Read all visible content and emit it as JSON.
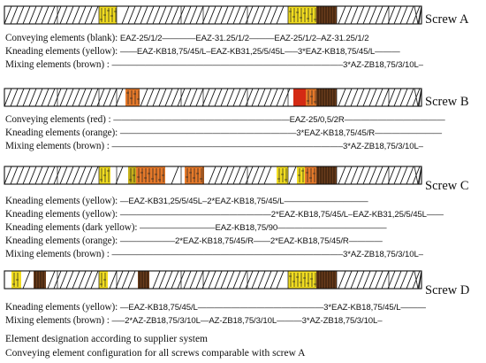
{
  "colors": {
    "yellow": "#f2dd20",
    "red": "#d42a14",
    "orange": "#e77a2a",
    "dark_yellow": "#c8b21a",
    "brown": "#6b3d1c",
    "outline": "#111111"
  },
  "screws": [
    {
      "name": "Screw A",
      "rows": [
        {
          "label": "Conveying elements (blank):",
          "code": "EAZ-25/1/2————EAZ-31.25/1/2———EAZ-25/1/2–AZ-31.25/1/2"
        },
        {
          "label": "Kneading elements (yellow):",
          "code": "——EAZ-KB18,75/45/L–EAZ-KB31,25/5/45L—–3*EAZ-KB18,75/45/L———"
        },
        {
          "label": "Mixing elements (brown)      :",
          "code": "———————————————————————————–3*AZ-ZB18,75/3/10L–"
        }
      ]
    },
    {
      "name": "Screw B",
      "rows": [
        {
          "label": "Conveying elements (red)   :",
          "code": "—————————————————————EAZ-25/0,5/2R————————————"
        },
        {
          "label": "Kneading elements (orange):",
          "code": "—————————————————————3*EAZ-KB18,75/45/R————————"
        },
        {
          "label": "Mixing elements (brown)      :",
          "code": "———————————————————————————–3*AZ-ZB18,75/3/10L–"
        }
      ]
    },
    {
      "name": "Screw C",
      "rows": [
        {
          "label": "Kneading elements (yellow):",
          "code": "—EAZ-KB31,25/5/45L–2*EAZ-KB18,75/45/L——————————"
        },
        {
          "label": "Kneading elements (yellow):",
          "code": "——————————————————2*EAZ-KB18,75/45/L–EAZ-KB31,25/5/45L——"
        },
        {
          "label": "Kneading elements (dark yellow):",
          "code": "—————————EAZ-KB18,75/90—————————————"
        },
        {
          "label": "Kneading elements (orange):",
          "code": "——————–2*EAZ-KB18,75/45/R——2*EAZ-KB18,75/45/R————"
        },
        {
          "label": "Mixing elements (brown)      :",
          "code": "———————————————————————————–3*AZ-ZB18,75/3/10L–"
        }
      ]
    },
    {
      "name": "Screw D",
      "rows": [
        {
          "label": "Kneading elements (yellow):",
          "code": "—EAZ-KB18,75/45/L———————————————3*EAZ-KB18,75/45/L———"
        },
        {
          "label": "Mixing elements (brown)      :",
          "code": "—–2*AZ-ZB18,75/3/10L—AZ-ZB18,75/3/10L———3*AZ-ZB18,75/3/10L–"
        }
      ]
    }
  ],
  "footnotes": [
    "Element designation according to supplier system",
    "Conveying element configuration for all screws comparable with screw A"
  ]
}
